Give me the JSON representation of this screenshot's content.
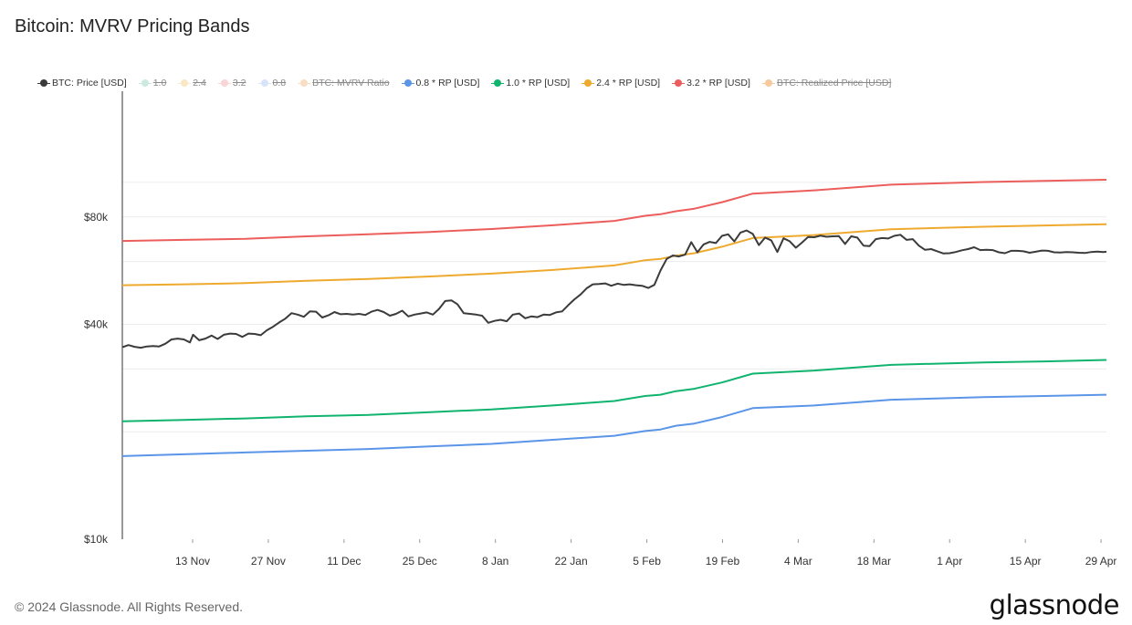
{
  "title": "Bitcoin: MVRV Pricing Bands",
  "legend": [
    {
      "label": "BTC: Price [USD]",
      "color": "#3b3b3b",
      "hidden": false
    },
    {
      "label": "1.0",
      "color": "#8fd1b4",
      "hidden": true
    },
    {
      "label": "2.4",
      "color": "#f2cd83",
      "hidden": true
    },
    {
      "label": "3.2",
      "color": "#f2a3a3",
      "hidden": true
    },
    {
      "label": "0.8",
      "color": "#a9c4f2",
      "hidden": true
    },
    {
      "label": "BTC: MVRV Ratio",
      "color": "#f0b77a",
      "hidden": true
    },
    {
      "label": "0.8 * RP [USD]",
      "color": "#5b95e8",
      "hidden": false
    },
    {
      "label": "1.0 * RP [USD]",
      "color": "#10b46e",
      "hidden": false
    },
    {
      "label": "2.4 * RP [USD]",
      "color": "#eeaa2e",
      "hidden": false
    },
    {
      "label": "3.2 * RP [USD]",
      "color": "#ec5e5b",
      "hidden": false
    },
    {
      "label": "BTC: Realized Price [USD]",
      "color": "#ef8a2a",
      "hidden": true
    }
  ],
  "footer": "© 2024 Glassnode. All Rights Reserved.",
  "brand": "glassnode",
  "chart_data": {
    "type": "line",
    "y_scale": "log",
    "ylim": [
      10000,
      180000
    ],
    "y_ticks": [
      {
        "value": 10000,
        "label": "$10k"
      },
      {
        "value": 40000,
        "label": "$40k"
      },
      {
        "value": 80000,
        "label": "$80k"
      }
    ],
    "x_ticks": [
      "13 Nov",
      "27 Nov",
      "11 Dec",
      "25 Dec",
      "8 Jan",
      "22 Jan",
      "5 Feb",
      "19 Feb",
      "4 Mar",
      "18 Mar",
      "1 Apr",
      "15 Apr",
      "29 Apr"
    ],
    "x_tick_days": [
      13,
      27,
      41,
      55,
      69,
      83,
      97,
      111,
      125,
      139,
      153,
      167,
      181
    ],
    "x_range_days": [
      0,
      182
    ],
    "grid": true,
    "legend_position": "top",
    "series": [
      {
        "name": "3.2 * RP [USD]",
        "color": "#ec5e5b",
        "width": 2,
        "points": [
          [
            0,
            68500
          ],
          [
            20,
            69000
          ],
          [
            40,
            69500
          ],
          [
            60,
            70600
          ],
          [
            80,
            71500
          ],
          [
            100,
            72600
          ],
          [
            120,
            74000
          ],
          [
            140,
            75800
          ],
          [
            160,
            78000
          ],
          [
            170,
            80600
          ],
          [
            175,
            81400
          ],
          [
            180,
            83000
          ],
          [
            186,
            84400
          ],
          [
            195,
            88000
          ],
          [
            205,
            93000
          ],
          [
            225,
            95000
          ],
          [
            250,
            98500
          ],
          [
            280,
            100200
          ],
          [
            300,
            101000
          ],
          [
            320,
            101700
          ]
        ]
      },
      {
        "name": "2.4 * RP [USD]",
        "color": "#eeaa2e",
        "width": 2,
        "points": [
          [
            0,
            51500
          ],
          [
            20,
            51800
          ],
          [
            40,
            52200
          ],
          [
            60,
            53000
          ],
          [
            80,
            53600
          ],
          [
            100,
            54500
          ],
          [
            120,
            55500
          ],
          [
            140,
            56800
          ],
          [
            160,
            58500
          ],
          [
            170,
            60500
          ],
          [
            175,
            61000
          ],
          [
            180,
            62300
          ],
          [
            186,
            63300
          ],
          [
            195,
            66000
          ],
          [
            205,
            69800
          ],
          [
            225,
            71200
          ],
          [
            250,
            73900
          ],
          [
            280,
            75100
          ],
          [
            300,
            75700
          ],
          [
            320,
            76300
          ]
        ]
      },
      {
        "name": "1.0 * RP [USD]",
        "color": "#10b46e",
        "width": 2,
        "points": [
          [
            0,
            21400
          ],
          [
            20,
            21600
          ],
          [
            40,
            21800
          ],
          [
            60,
            22100
          ],
          [
            80,
            22300
          ],
          [
            100,
            22700
          ],
          [
            120,
            23100
          ],
          [
            140,
            23700
          ],
          [
            160,
            24400
          ],
          [
            170,
            25200
          ],
          [
            175,
            25400
          ],
          [
            180,
            26000
          ],
          [
            186,
            26400
          ],
          [
            195,
            27500
          ],
          [
            205,
            29100
          ],
          [
            225,
            29700
          ],
          [
            250,
            30800
          ],
          [
            280,
            31300
          ],
          [
            300,
            31500
          ],
          [
            320,
            31800
          ]
        ]
      },
      {
        "name": "0.8 * RP [USD]",
        "color": "#5b95e8",
        "width": 2,
        "points": [
          [
            0,
            17100
          ],
          [
            20,
            17300
          ],
          [
            40,
            17500
          ],
          [
            60,
            17700
          ],
          [
            80,
            17900
          ],
          [
            100,
            18200
          ],
          [
            120,
            18500
          ],
          [
            140,
            19000
          ],
          [
            160,
            19500
          ],
          [
            170,
            20100
          ],
          [
            175,
            20300
          ],
          [
            180,
            20800
          ],
          [
            186,
            21100
          ],
          [
            195,
            22000
          ],
          [
            205,
            23300
          ],
          [
            225,
            23700
          ],
          [
            250,
            24600
          ],
          [
            280,
            25000
          ],
          [
            300,
            25200
          ],
          [
            320,
            25400
          ]
        ]
      },
      {
        "name": "BTC: Price [USD]",
        "color": "#3b3b3b",
        "width": 2,
        "points": [
          [
            0,
            34500
          ],
          [
            2,
            35000
          ],
          [
            4,
            34600
          ],
          [
            6,
            34400
          ],
          [
            8,
            34700
          ],
          [
            10,
            34800
          ],
          [
            12,
            34700
          ],
          [
            14,
            35300
          ],
          [
            16,
            36300
          ],
          [
            18,
            36500
          ],
          [
            20,
            36300
          ],
          [
            22,
            35600
          ],
          [
            23,
            37400
          ],
          [
            25,
            36100
          ],
          [
            27,
            36500
          ],
          [
            29,
            37200
          ],
          [
            31,
            36400
          ],
          [
            33,
            37400
          ],
          [
            35,
            37700
          ],
          [
            37,
            37600
          ],
          [
            39,
            36900
          ],
          [
            41,
            37700
          ],
          [
            43,
            37600
          ],
          [
            45,
            37300
          ],
          [
            47,
            38500
          ],
          [
            49,
            39400
          ],
          [
            51,
            40500
          ],
          [
            53,
            41500
          ],
          [
            55,
            43000
          ],
          [
            57,
            42600
          ],
          [
            59,
            42000
          ],
          [
            61,
            43500
          ],
          [
            63,
            43400
          ],
          [
            65,
            41800
          ],
          [
            67,
            42400
          ],
          [
            69,
            43300
          ],
          [
            71,
            42700
          ],
          [
            73,
            42800
          ],
          [
            75,
            42600
          ],
          [
            77,
            42800
          ],
          [
            79,
            42500
          ],
          [
            81,
            43400
          ],
          [
            83,
            43900
          ],
          [
            85,
            43300
          ],
          [
            87,
            42300
          ],
          [
            89,
            42800
          ],
          [
            91,
            43700
          ],
          [
            93,
            42100
          ],
          [
            95,
            42600
          ],
          [
            97,
            42900
          ],
          [
            99,
            43200
          ],
          [
            101,
            42600
          ],
          [
            103,
            44200
          ],
          [
            105,
            46500
          ],
          [
            107,
            46700
          ],
          [
            109,
            45500
          ],
          [
            111,
            43000
          ],
          [
            113,
            42800
          ],
          [
            115,
            42600
          ],
          [
            117,
            42300
          ],
          [
            119,
            40400
          ],
          [
            121,
            40900
          ],
          [
            123,
            41200
          ],
          [
            125,
            40800
          ],
          [
            127,
            42600
          ],
          [
            129,
            42900
          ],
          [
            131,
            41600
          ],
          [
            133,
            42100
          ],
          [
            135,
            41900
          ],
          [
            137,
            42600
          ],
          [
            139,
            42500
          ],
          [
            141,
            43200
          ],
          [
            143,
            43500
          ],
          [
            145,
            45300
          ],
          [
            147,
            47000
          ],
          [
            149,
            48500
          ],
          [
            151,
            50500
          ],
          [
            153,
            51800
          ],
          [
            155,
            51900
          ],
          [
            157,
            52100
          ],
          [
            159,
            51300
          ],
          [
            161,
            52000
          ],
          [
            163,
            51600
          ],
          [
            165,
            51800
          ],
          [
            167,
            51500
          ],
          [
            169,
            51300
          ],
          [
            171,
            50600
          ],
          [
            173,
            51600
          ],
          [
            175,
            56600
          ],
          [
            177,
            61000
          ],
          [
            179,
            62400
          ],
          [
            181,
            62000
          ],
          [
            183,
            62700
          ],
          [
            185,
            68000
          ],
          [
            187,
            63700
          ],
          [
            189,
            67000
          ],
          [
            191,
            68100
          ],
          [
            193,
            67600
          ],
          [
            195,
            70800
          ],
          [
            197,
            71500
          ],
          [
            199,
            68300
          ],
          [
            201,
            72300
          ],
          [
            203,
            73300
          ],
          [
            205,
            71700
          ],
          [
            207,
            66700
          ],
          [
            209,
            70000
          ],
          [
            211,
            68800
          ],
          [
            213,
            63800
          ],
          [
            215,
            69700
          ],
          [
            217,
            68400
          ],
          [
            219,
            65600
          ],
          [
            221,
            67800
          ],
          [
            223,
            70300
          ],
          [
            225,
            70200
          ],
          [
            227,
            70900
          ],
          [
            229,
            70400
          ],
          [
            231,
            70600
          ],
          [
            233,
            70700
          ],
          [
            235,
            67200
          ],
          [
            237,
            70600
          ],
          [
            239,
            70000
          ],
          [
            241,
            66500
          ],
          [
            243,
            66300
          ],
          [
            245,
            69300
          ],
          [
            247,
            69800
          ],
          [
            249,
            69600
          ],
          [
            251,
            70800
          ],
          [
            253,
            71300
          ],
          [
            255,
            69000
          ],
          [
            257,
            69300
          ],
          [
            259,
            66500
          ],
          [
            261,
            64700
          ],
          [
            263,
            65000
          ],
          [
            265,
            64100
          ],
          [
            267,
            63200
          ],
          [
            269,
            63300
          ],
          [
            271,
            63800
          ],
          [
            273,
            64500
          ],
          [
            275,
            65000
          ],
          [
            277,
            65800
          ],
          [
            279,
            64600
          ],
          [
            281,
            64700
          ],
          [
            283,
            64600
          ],
          [
            285,
            63700
          ],
          [
            287,
            63300
          ],
          [
            289,
            64300
          ],
          [
            291,
            64300
          ],
          [
            293,
            64100
          ],
          [
            295,
            63500
          ],
          [
            297,
            63900
          ],
          [
            299,
            64400
          ],
          [
            301,
            64300
          ],
          [
            303,
            63700
          ],
          [
            305,
            63600
          ],
          [
            307,
            63800
          ],
          [
            309,
            63700
          ],
          [
            311,
            63500
          ],
          [
            313,
            63400
          ],
          [
            315,
            63800
          ],
          [
            317,
            64000
          ],
          [
            319,
            63800
          ],
          [
            320,
            63900
          ]
        ]
      }
    ]
  }
}
